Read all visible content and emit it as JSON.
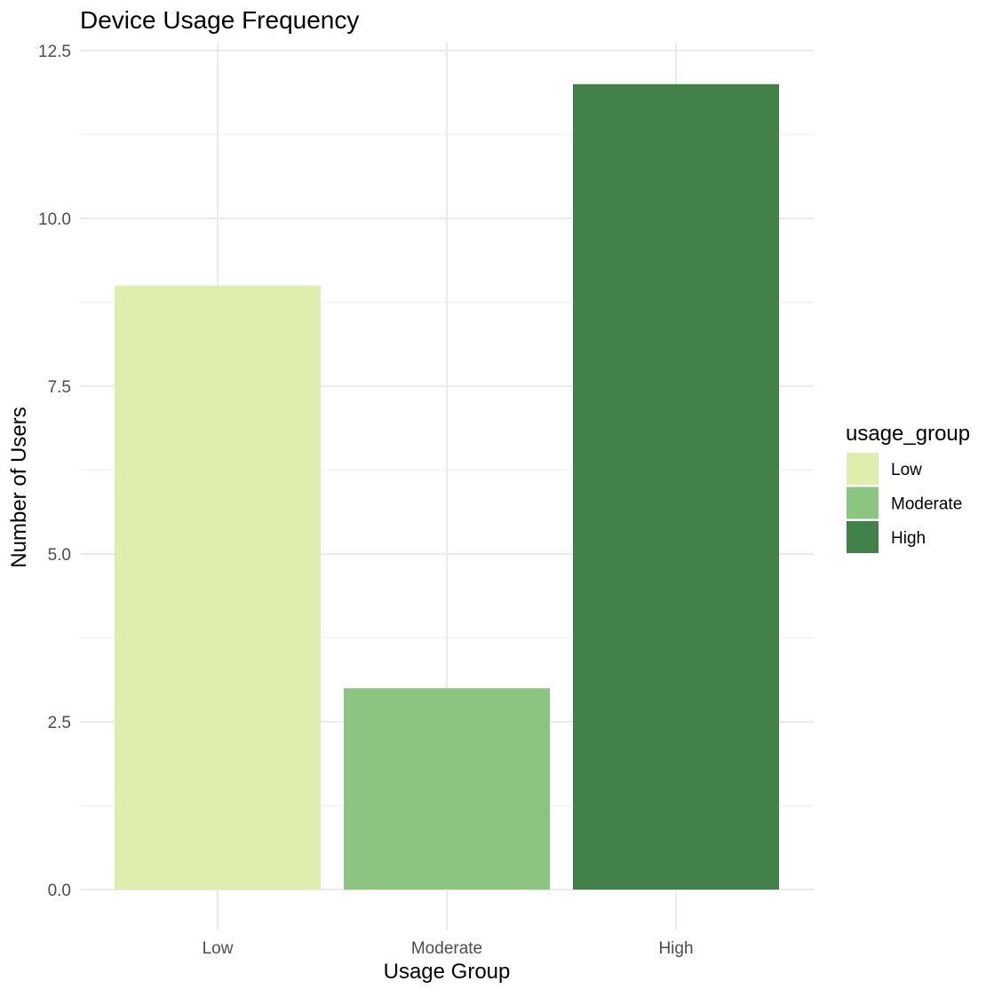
{
  "chart_data": {
    "type": "bar",
    "title": "Device Usage Frequency",
    "xlabel": "Usage Group",
    "ylabel": "Number of Users",
    "categories": [
      "Low",
      "Moderate",
      "High"
    ],
    "values": [
      9,
      3,
      12
    ],
    "ylim": [
      0,
      12.5
    ],
    "yticks": [
      0,
      2.5,
      5,
      7.5,
      10,
      12.5
    ],
    "ytick_labels": [
      "0.0",
      "2.5",
      "5.0",
      "7.5",
      "10.0",
      "12.5"
    ],
    "grid": true,
    "legend": {
      "title": "usage_group",
      "position": "right",
      "entries": [
        "Low",
        "Moderate",
        "High"
      ]
    },
    "colors": {
      "Low": "#dfeeac",
      "Moderate": "#8bc580",
      "High": "#42824a"
    }
  }
}
